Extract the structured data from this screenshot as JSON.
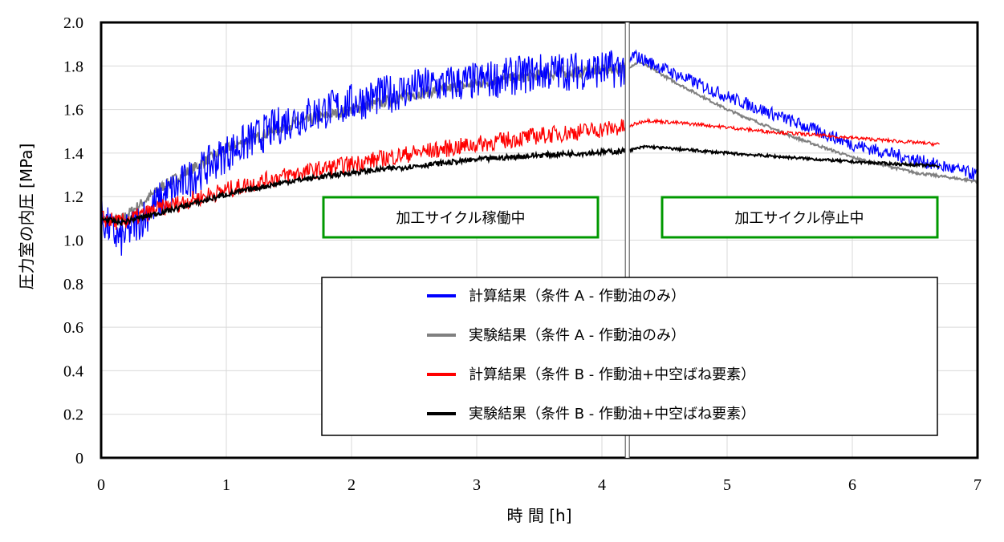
{
  "chart_data": {
    "type": "line",
    "title": "",
    "xlabel": "時 間 [h]",
    "ylabel": "圧力室の内圧 [MPa]",
    "xlim": [
      0,
      7
    ],
    "ylim": [
      0,
      2.0
    ],
    "xticks": [
      "0",
      "1",
      "2",
      "3",
      "4",
      "5",
      "6",
      "7"
    ],
    "yticks": [
      "0",
      "0.2",
      "0.4",
      "0.6",
      "0.8",
      "1.0",
      "1.2",
      "1.4",
      "1.6",
      "1.8",
      "2.0"
    ],
    "grid": true,
    "axis_break_x": 4.2,
    "annotations": [
      "加工サイクル稼働中",
      "加工サイクル停止中"
    ],
    "annotation_color": "#009900",
    "legend_position": "bottom-center",
    "series": [
      {
        "name": "計算結果（条件 A - 作動油のみ）",
        "color": "#0000ff",
        "x": [
          0,
          0.15,
          0.5,
          1,
          1.5,
          2,
          2.5,
          3,
          3.5,
          4.2,
          4.25,
          4.6,
          5,
          5.5,
          6,
          6.5,
          7
        ],
        "y": [
          1.1,
          1.0,
          1.2,
          1.4,
          1.55,
          1.63,
          1.7,
          1.73,
          1.77,
          1.79,
          1.85,
          1.76,
          1.66,
          1.55,
          1.44,
          1.37,
          1.3
        ]
      },
      {
        "name": "実験結果（条件 A - 作動油のみ）",
        "color": "#808080",
        "x": [
          0,
          0.15,
          0.5,
          1,
          1.5,
          2,
          2.5,
          3,
          3.5,
          4.2,
          4.3,
          4.6,
          5,
          5.5,
          6,
          6.5,
          7
        ],
        "y": [
          1.1,
          1.09,
          1.25,
          1.42,
          1.53,
          1.6,
          1.67,
          1.72,
          1.76,
          1.79,
          1.82,
          1.72,
          1.6,
          1.48,
          1.38,
          1.31,
          1.27
        ]
      },
      {
        "name": "計算結果（条件 B - 作動油+中空ばね要素）",
        "color": "#ff0000",
        "x": [
          0,
          0.15,
          0.5,
          1,
          1.5,
          2,
          2.5,
          3,
          3.5,
          4.2,
          4.35,
          4.8,
          5.3,
          6,
          6.7
        ],
        "y": [
          1.1,
          1.08,
          1.15,
          1.23,
          1.3,
          1.35,
          1.4,
          1.44,
          1.48,
          1.52,
          1.55,
          1.53,
          1.5,
          1.47,
          1.44
        ]
      },
      {
        "name": "実験結果（条件 B - 作動油+中空ばね要素）",
        "color": "#000000",
        "x": [
          0,
          0.15,
          0.5,
          1,
          1.5,
          2,
          2.5,
          3,
          3.5,
          4.2,
          4.35,
          5,
          6,
          6.7
        ],
        "y": [
          1.1,
          1.08,
          1.13,
          1.21,
          1.27,
          1.31,
          1.34,
          1.37,
          1.39,
          1.41,
          1.43,
          1.4,
          1.36,
          1.34
        ]
      }
    ]
  }
}
